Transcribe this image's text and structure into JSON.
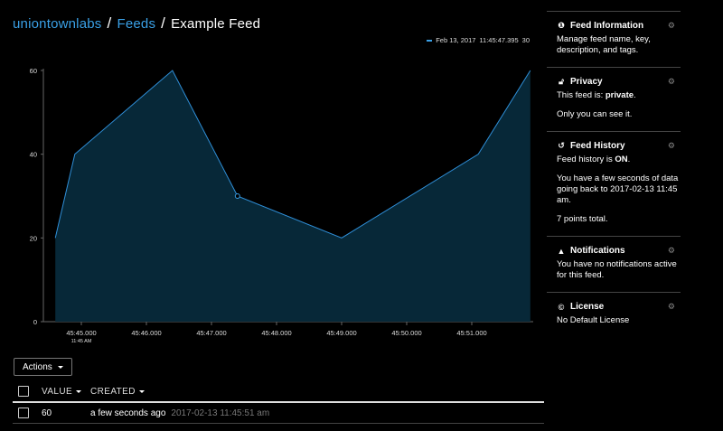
{
  "breadcrumb": {
    "owner": "uniontownlabs",
    "sep": "/",
    "section": "Feeds",
    "current": "Example Feed"
  },
  "legend": {
    "date": "Feb 13, 2017",
    "time": "11:45:47.395",
    "value": "30"
  },
  "chart_data": {
    "type": "area",
    "x": [
      "45:44.6",
      "45:44.9",
      "45:46.4",
      "45:47.4",
      "45:49.0",
      "45:51.1",
      "45:51.9"
    ],
    "values": [
      20,
      40,
      60,
      30,
      20,
      40,
      60
    ],
    "xticks": [
      "45:45.000",
      "45:46.000",
      "45:47.000",
      "45:48.000",
      "45:49.000",
      "45:50.000",
      "45:51.000"
    ],
    "xtick_sub": "11:45 AM",
    "yticks": [
      "0",
      "20",
      "40",
      "60"
    ],
    "ylim": [
      0,
      60
    ],
    "highlighted_index": 3,
    "line_color": "#2f8fd8",
    "fill_color": "#072838"
  },
  "actions": {
    "label": "Actions"
  },
  "table": {
    "columns": {
      "value": "VALUE",
      "created": "CREATED"
    },
    "rows": [
      {
        "value": "60",
        "ago": "a few seconds ago",
        "time": "2017-02-13 11:45:51 am"
      }
    ]
  },
  "sidebar": {
    "info": {
      "title": "Feed Information",
      "text": "Manage feed name, key, description, and tags."
    },
    "privacy": {
      "title": "Privacy",
      "text_prefix": "This feed is: ",
      "text_strong": "private",
      "text_suffix": ".",
      "text2": "Only you can see it."
    },
    "history": {
      "title": "Feed History",
      "text_prefix": "Feed history is ",
      "text_strong": "ON",
      "text_suffix": ".",
      "text2": "You have a few seconds of data going back to 2017-02-13 11:45 am.",
      "text3": "7 points total."
    },
    "notifications": {
      "title": "Notifications",
      "text": "You have no notifications active for this feed."
    },
    "license": {
      "title": "License",
      "text": "No Default License"
    }
  }
}
